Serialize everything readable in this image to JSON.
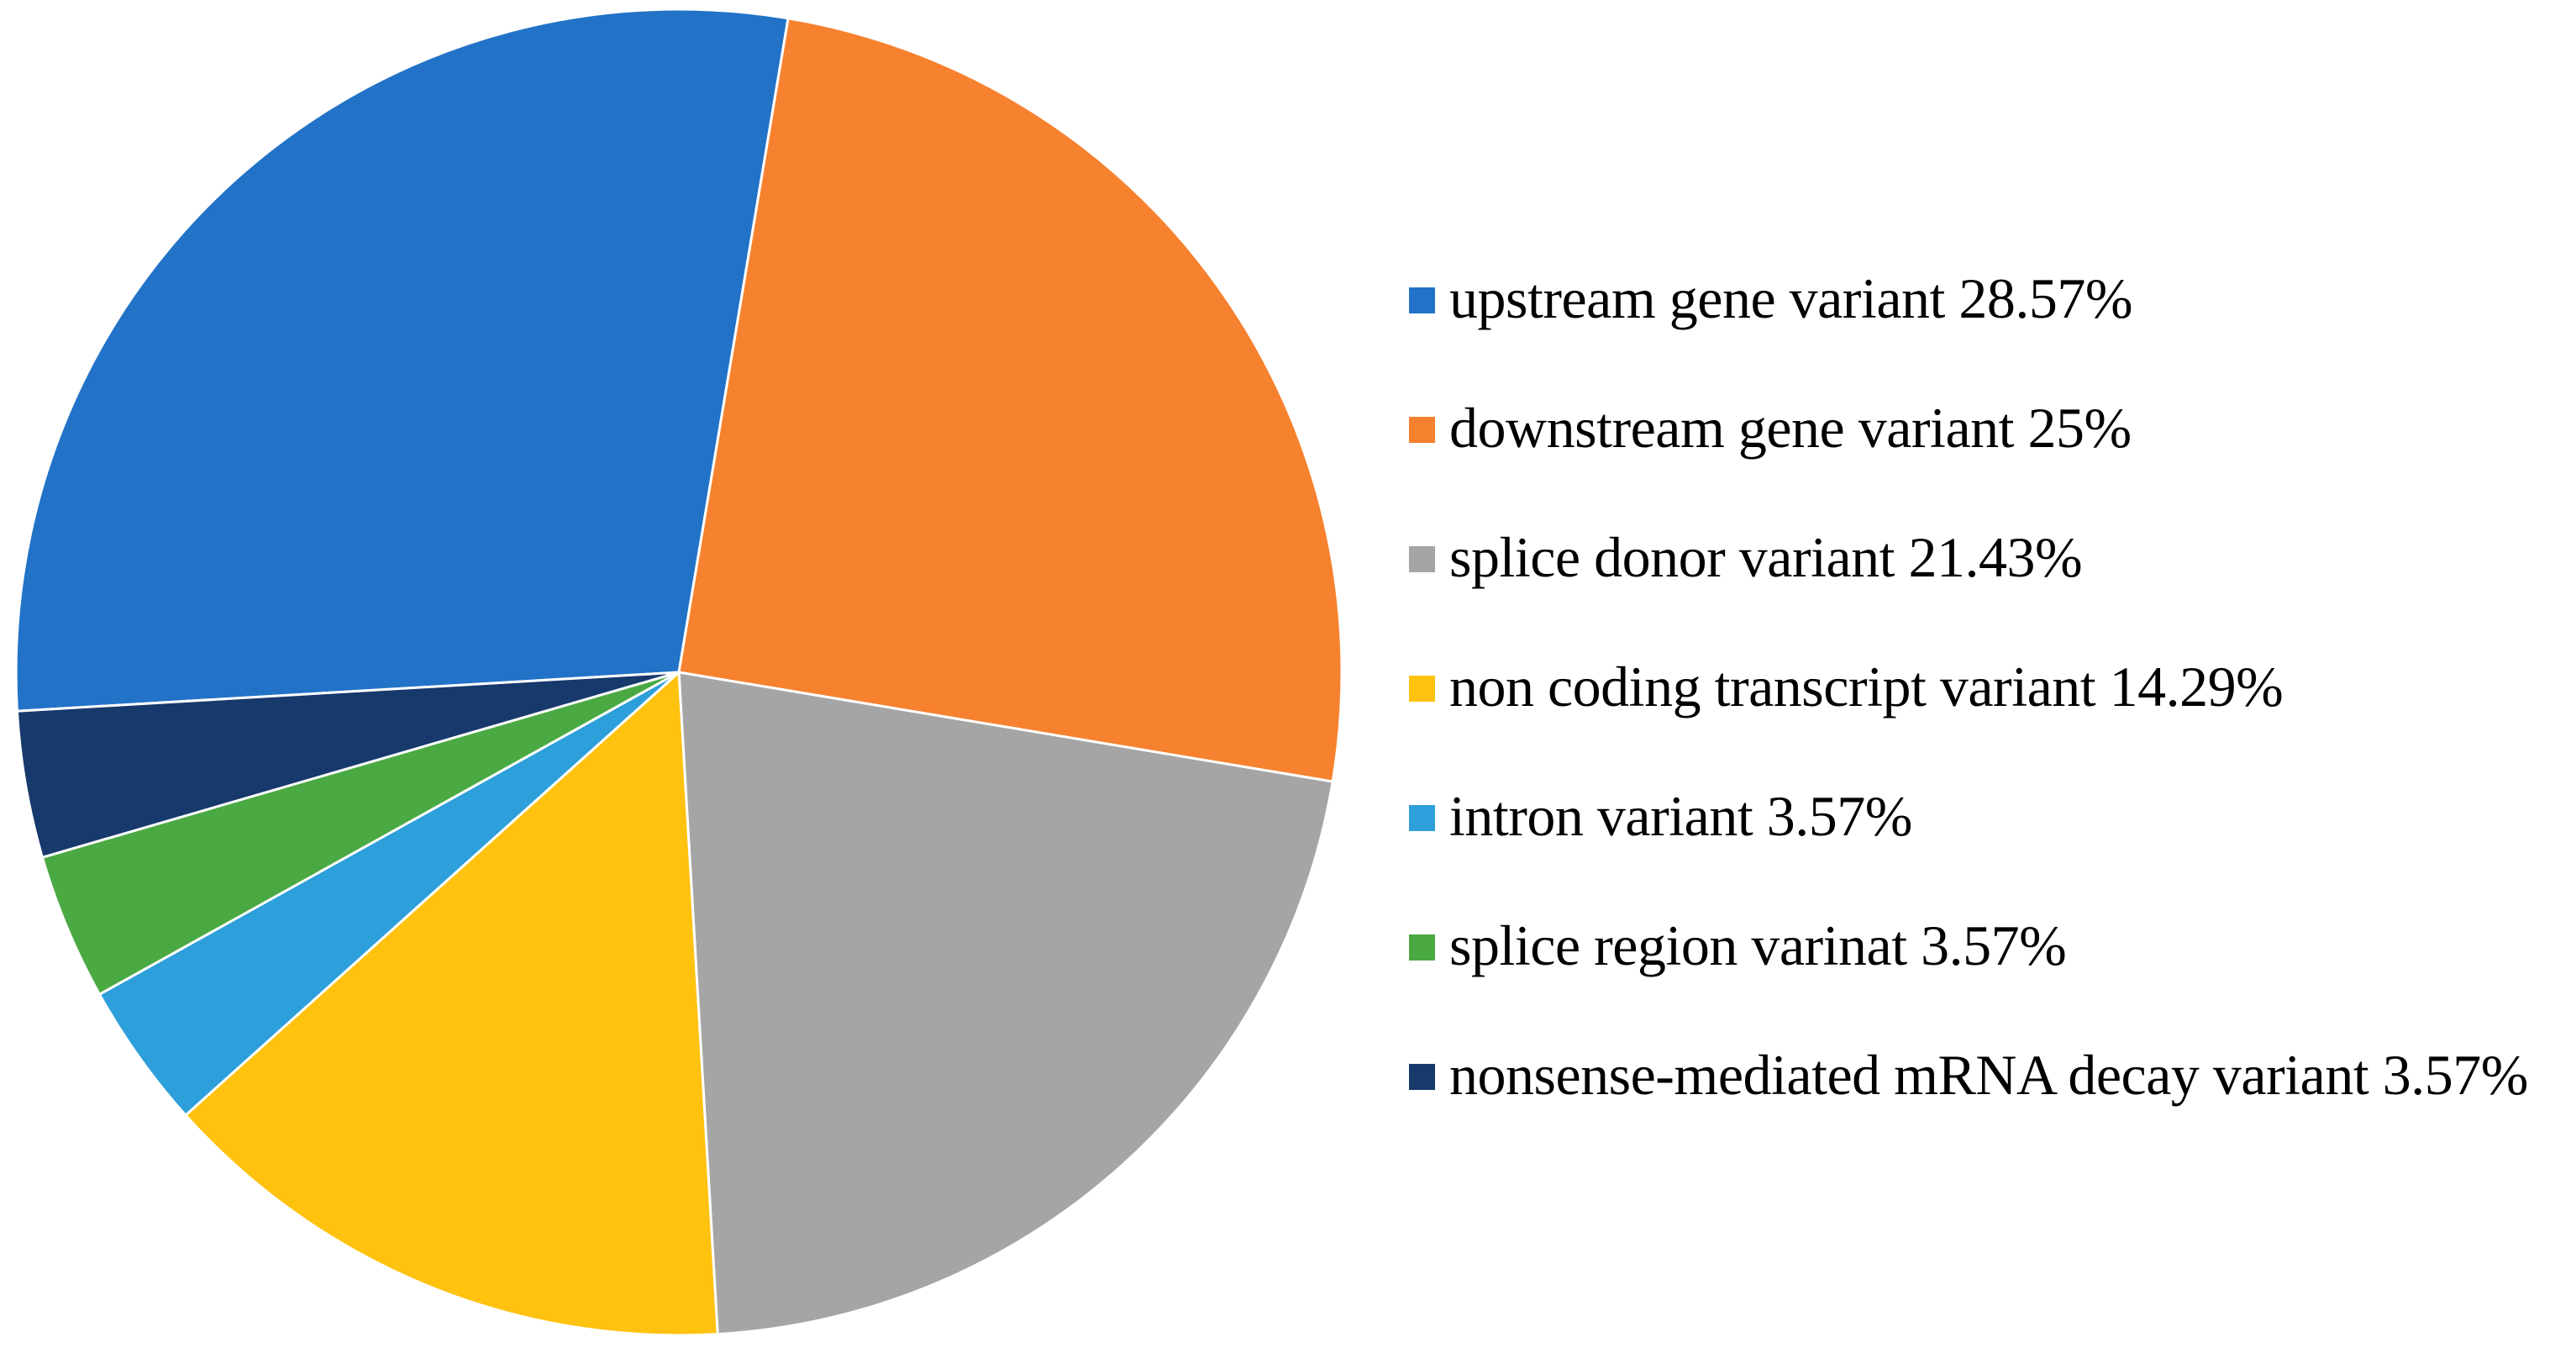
{
  "figure": {
    "background": "#FFFFFF",
    "description": "Pie chart of gene variant consequence types with right-side legend"
  },
  "chart_data": {
    "type": "pie",
    "start_angle_deg": 266.64,
    "direction": "clockwise",
    "legend_position": "right",
    "grid": false,
    "separator_color": "#FFFFFF",
    "slices": [
      {
        "label": "upstream gene variant",
        "pct": 28.57,
        "display": "upstream gene variant 28.57%",
        "color": "#2273C8"
      },
      {
        "label": "downstream gene variant",
        "pct": 25.0,
        "display": "downstream gene variant 25%",
        "color": "#F6812E"
      },
      {
        "label": "splice donor variant",
        "pct": 21.43,
        "display": "splice donor variant 21.43%",
        "color": "#A5A5A5"
      },
      {
        "label": "non coding transcript variant",
        "pct": 14.29,
        "display": "non coding transcript variant 14.29%",
        "color": "#FEC20F"
      },
      {
        "label": "intron variant",
        "pct": 3.57,
        "display": "intron variant 3.57%",
        "color": "#2D9FDB"
      },
      {
        "label": "splice region varinat",
        "pct": 3.57,
        "display": "splice region varinat 3.57%",
        "color": "#4BA943"
      },
      {
        "label": "nonsense-mediated mRNA decay variant",
        "pct": 3.57,
        "display": "nonsense-mediated mRNA decay variant 3.57%",
        "color": "#17396C"
      }
    ]
  }
}
